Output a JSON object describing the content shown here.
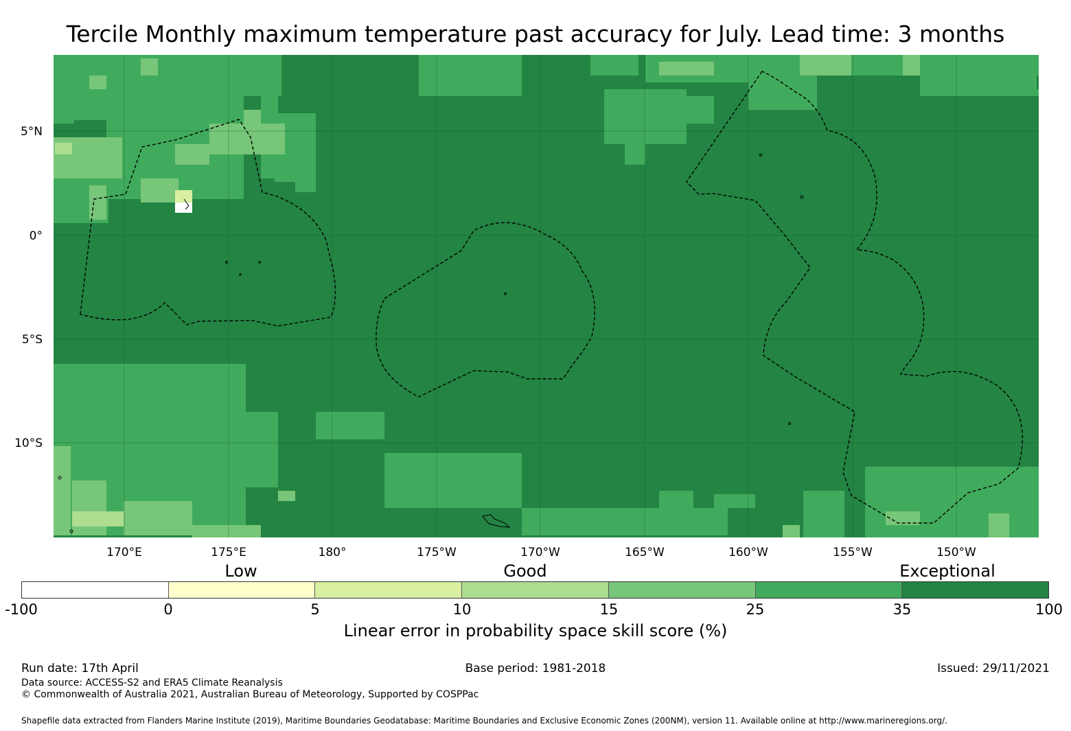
{
  "title": "Tercile Monthly maximum temperature past accuracy for July. Lead time: 3 months",
  "map": {
    "lat_labels": [
      "5°N",
      "0°",
      "5°S",
      "10°S"
    ],
    "lon_labels": [
      "170°E",
      "175°E",
      "180°",
      "175°W",
      "170°W",
      "165°W",
      "160°W",
      "155°W",
      "150°W"
    ],
    "dominant_class": "35 to 100",
    "eez_boundaries": "dashed black lines"
  },
  "colorbar": {
    "categories": [
      "Low",
      "Good",
      "Exceptional"
    ],
    "ticks": [
      "-100",
      "0",
      "5",
      "10",
      "15",
      "25",
      "35",
      "100"
    ],
    "colors": [
      "#ffffff",
      "#ffffcc",
      "#d9f0a3",
      "#addd8e",
      "#78c679",
      "#41ab5d",
      "#238443"
    ],
    "label": "Linear error in probability space skill score (%)"
  },
  "footer": {
    "run_date": "Run date: 17th April",
    "base_period": "Base period: 1981-2018",
    "issued": "Issued: 29/11/2021",
    "data_source": "Data source: ACCESS-S2 and ERA5 Climate Reanalysis",
    "copyright": "© Commonwealth of Australia 2021, Australian Bureau of Meteorology, Supported by COSPPac",
    "shapefile": "Shapefile data extracted from Flanders Marine Institute (2019), Maritime Boundaries Geodatabase: Maritime Boundaries and Exclusive Economic Zones (200NM), version 11. Available online at http://www.marineregions.org/."
  }
}
